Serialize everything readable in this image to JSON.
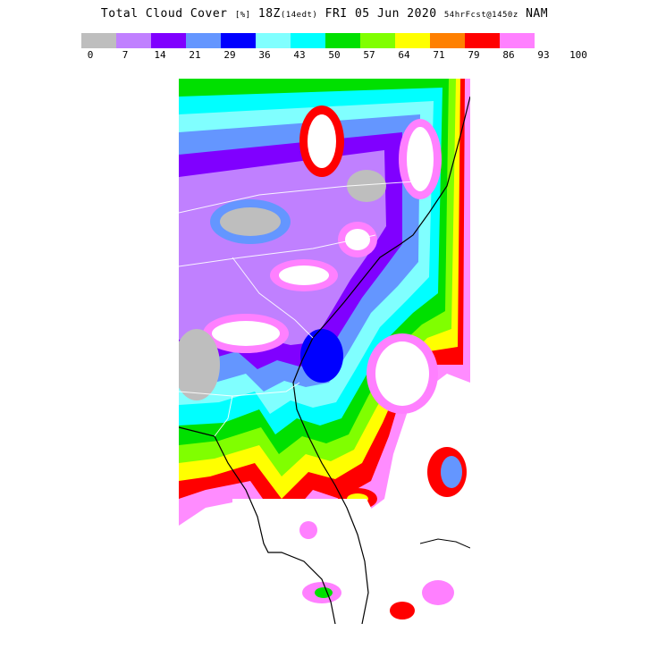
{
  "header": {
    "product": "Total Cloud Cover",
    "units": "[%]",
    "valid_time": "18Z",
    "local_time": "(14edt)",
    "date": "FRI 05 Jun 2020",
    "forecast": "54hrFcst@1450z",
    "model": "NAM"
  },
  "legend": {
    "ticks": [
      "0",
      "7",
      "14",
      "21",
      "29",
      "36",
      "43",
      "50",
      "57",
      "64",
      "71",
      "79",
      "86",
      "93",
      "100"
    ],
    "colors": [
      "#bebebe",
      "#c080ff",
      "#8000ff",
      "#6496ff",
      "#0000ff",
      "#80ffff",
      "#00ffff",
      "#00e000",
      "#80ff00",
      "#ffff00",
      "#ff8000",
      "#ff0000",
      "#ff80ff"
    ]
  },
  "map": {
    "region": "Southeastern US (Virginia to Florida)",
    "coast_color": "#000000",
    "border_color": "#ffffff"
  }
}
